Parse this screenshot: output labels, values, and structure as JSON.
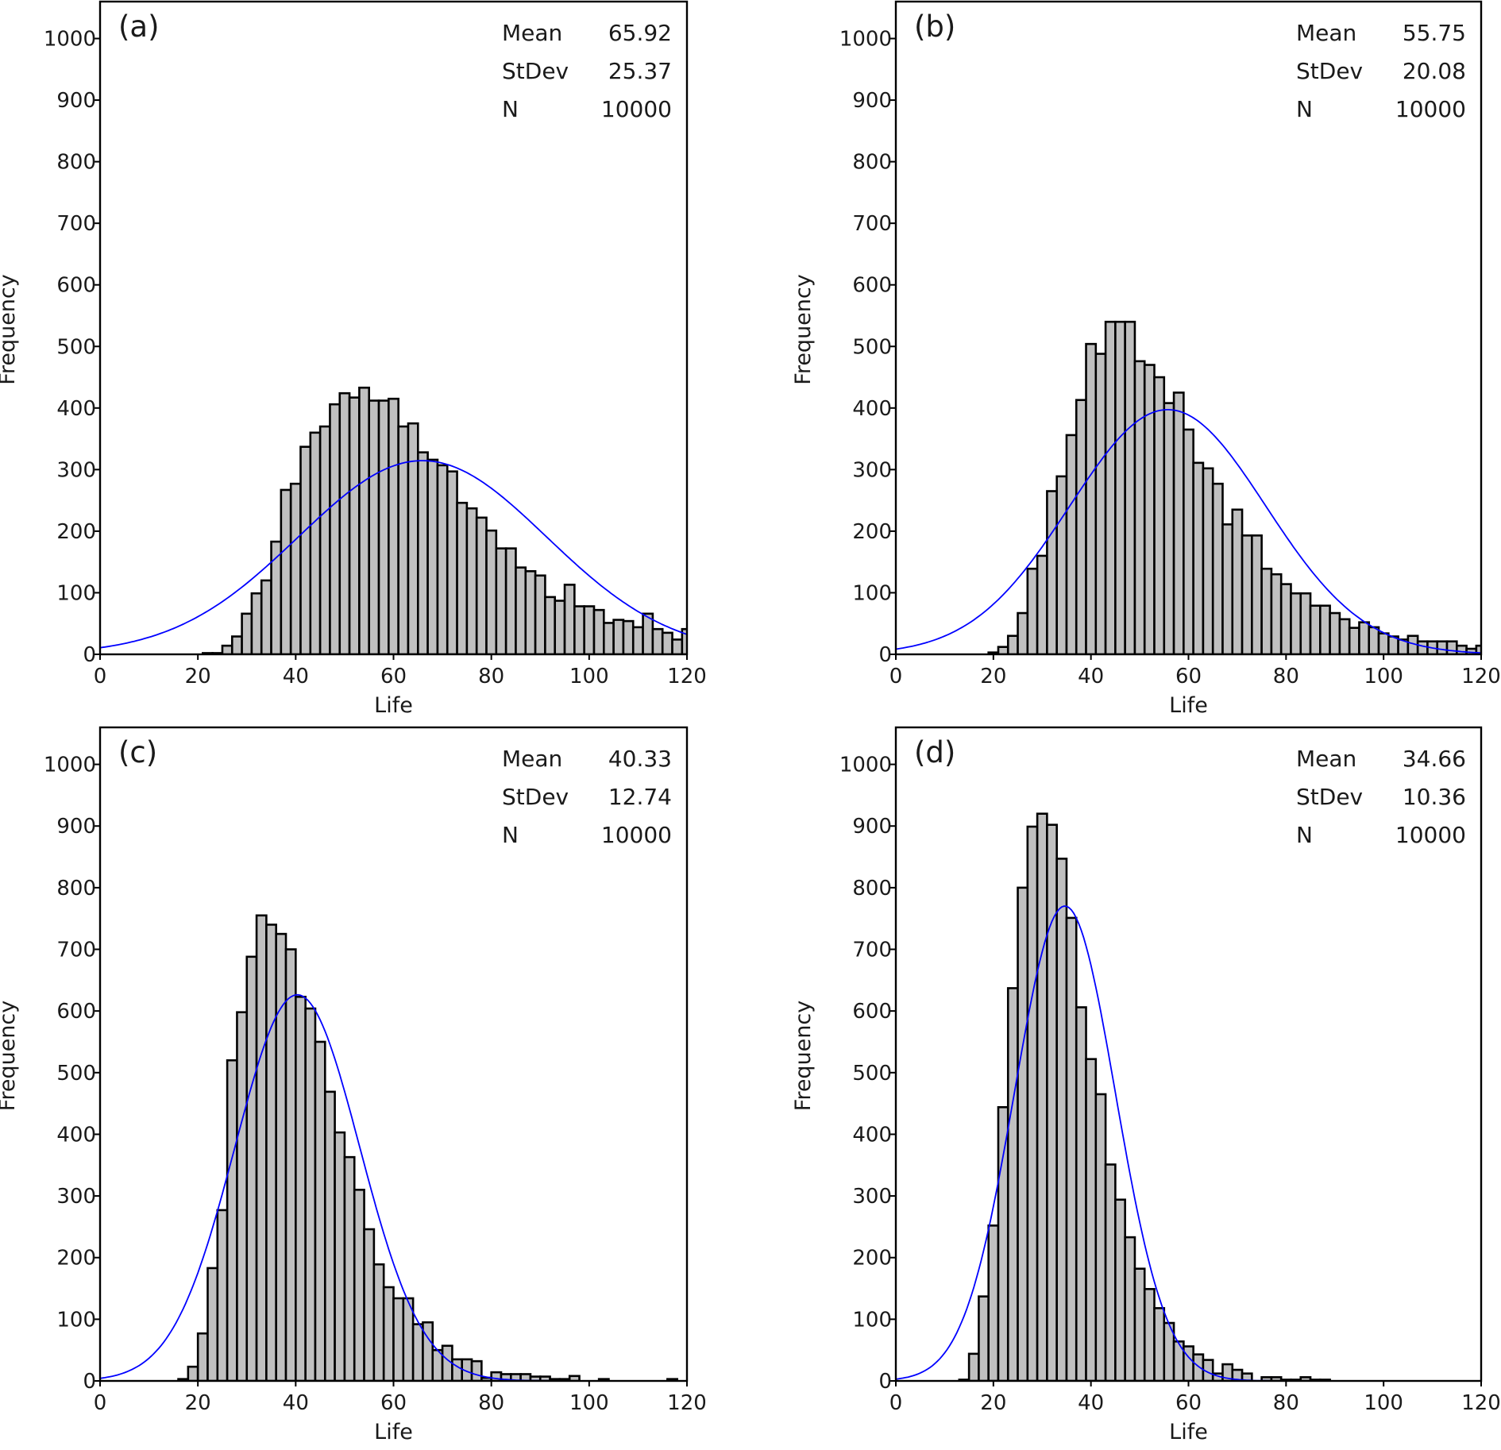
{
  "colors": {
    "bar_fill": "#c0c0c0",
    "bar_edge": "#000000",
    "fit_curve": "#0000ff",
    "frame": "#000000"
  },
  "chart_data": [
    {
      "type": "bar",
      "subtype": "histogram with normal fit",
      "panel_label": "(a)",
      "xlabel": "Life",
      "ylabel": "Frequency",
      "xlim": [
        0,
        120
      ],
      "ylim": [
        0,
        1060
      ],
      "xticks": [
        "0",
        "20",
        "40",
        "60",
        "80",
        "100",
        "120"
      ],
      "yticks": [
        "0",
        "100",
        "200",
        "300",
        "400",
        "500",
        "600",
        "700",
        "800",
        "900",
        "1000"
      ],
      "grid": false,
      "stats": [
        {
          "label": "Mean",
          "value": "65.92"
        },
        {
          "label": "StDev",
          "value": "25.37"
        },
        {
          "label": "N",
          "value": "10000"
        }
      ],
      "fit": {
        "distribution": "normal",
        "mean": 65.92,
        "stdev": 25.37,
        "n": 10000
      },
      "bin_width": 2,
      "first_bin_center": 22,
      "values": [
        2,
        2,
        14,
        29,
        66,
        99,
        120,
        183,
        267,
        277,
        337,
        360,
        370,
        406,
        424,
        417,
        433,
        412,
        412,
        415,
        370,
        375,
        328,
        316,
        307,
        297,
        246,
        237,
        222,
        201,
        172,
        172,
        141,
        135,
        128,
        93,
        87,
        113,
        78,
        78,
        72,
        51,
        56,
        54,
        44,
        66,
        41,
        35,
        24,
        41
      ]
    },
    {
      "type": "bar",
      "subtype": "histogram with normal fit",
      "panel_label": "(b)",
      "xlabel": "Life",
      "ylabel": "Frequency",
      "xlim": [
        0,
        120
      ],
      "ylim": [
        0,
        1060
      ],
      "xticks": [
        "0",
        "20",
        "40",
        "60",
        "80",
        "100",
        "120"
      ],
      "yticks": [
        "0",
        "100",
        "200",
        "300",
        "400",
        "500",
        "600",
        "700",
        "800",
        "900",
        "1000"
      ],
      "grid": false,
      "stats": [
        {
          "label": "Mean",
          "value": "55.75"
        },
        {
          "label": "StDev",
          "value": "20.08"
        },
        {
          "label": "N",
          "value": "10000"
        }
      ],
      "fit": {
        "distribution": "normal",
        "mean": 55.75,
        "stdev": 20.08,
        "n": 10000
      },
      "bin_width": 2,
      "first_bin_center": 20,
      "values": [
        3,
        12,
        30,
        67,
        139,
        160,
        265,
        289,
        356,
        413,
        504,
        488,
        540,
        540,
        540,
        476,
        470,
        450,
        408,
        425,
        365,
        311,
        302,
        277,
        211,
        235,
        193,
        193,
        139,
        130,
        114,
        99,
        99,
        79,
        79,
        67,
        57,
        43,
        52,
        44,
        34,
        29,
        24,
        30,
        21,
        21,
        21,
        21,
        14,
        9,
        14
      ]
    },
    {
      "type": "bar",
      "subtype": "histogram with normal fit",
      "panel_label": "(c)",
      "xlabel": "Life",
      "ylabel": "Frequency",
      "xlim": [
        0,
        120
      ],
      "ylim": [
        0,
        1060
      ],
      "xticks": [
        "0",
        "20",
        "40",
        "60",
        "80",
        "100",
        "120"
      ],
      "yticks": [
        "0",
        "100",
        "200",
        "300",
        "400",
        "500",
        "600",
        "700",
        "800",
        "900",
        "1000"
      ],
      "grid": false,
      "stats": [
        {
          "label": "Mean",
          "value": "40.33"
        },
        {
          "label": "StDev",
          "value": "12.74"
        },
        {
          "label": "N",
          "value": "10000"
        }
      ],
      "fit": {
        "distribution": "normal",
        "mean": 40.33,
        "stdev": 12.74,
        "n": 10000
      },
      "bin_width": 2,
      "first_bin_center": 17,
      "values": [
        3,
        23,
        77,
        183,
        277,
        520,
        598,
        688,
        755,
        740,
        725,
        700,
        623,
        604,
        550,
        469,
        403,
        363,
        310,
        246,
        189,
        152,
        134,
        134,
        92,
        95,
        50,
        57,
        35,
        35,
        32,
        5,
        14,
        11,
        11,
        11,
        7,
        7,
        3,
        3,
        8,
        0,
        0,
        3,
        0,
        0,
        0,
        0,
        0,
        0,
        3,
        0
      ]
    },
    {
      "type": "bar",
      "subtype": "histogram with normal fit",
      "panel_label": "(d)",
      "xlabel": "Life",
      "ylabel": "Frequency",
      "xlim": [
        0,
        120
      ],
      "ylim": [
        0,
        1060
      ],
      "xticks": [
        "0",
        "20",
        "40",
        "60",
        "80",
        "100",
        "120"
      ],
      "yticks": [
        "0",
        "100",
        "200",
        "300",
        "400",
        "500",
        "600",
        "700",
        "800",
        "900",
        "1000"
      ],
      "grid": false,
      "stats": [
        {
          "label": "Mean",
          "value": "34.66"
        },
        {
          "label": "StDev",
          "value": "10.36"
        },
        {
          "label": "N",
          "value": "10000"
        }
      ],
      "fit": {
        "distribution": "normal",
        "mean": 34.66,
        "stdev": 10.36,
        "n": 10000
      },
      "bin_width": 2,
      "first_bin_center": 14,
      "values": [
        2,
        44,
        137,
        252,
        444,
        637,
        800,
        899,
        920,
        902,
        847,
        751,
        606,
        522,
        465,
        351,
        294,
        233,
        182,
        149,
        118,
        94,
        64,
        56,
        43,
        34,
        12,
        27,
        18,
        12,
        0,
        6,
        6,
        2,
        2,
        6,
        2,
        2
      ]
    }
  ]
}
